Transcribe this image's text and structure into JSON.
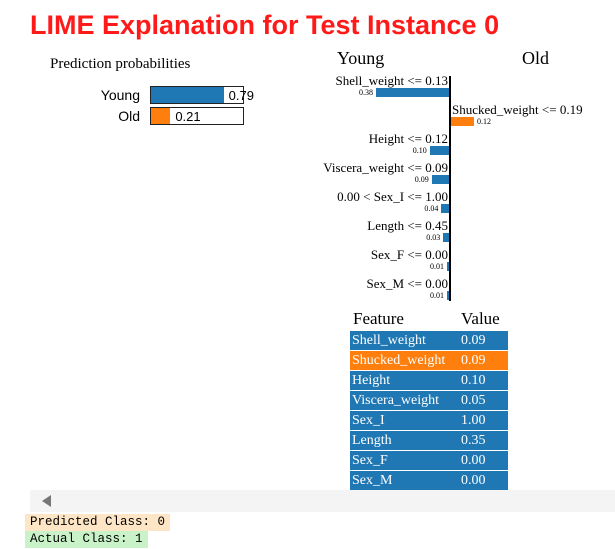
{
  "title": "LIME Explanation for Test Instance 0",
  "prediction": {
    "heading": "Prediction probabilities",
    "rows": [
      {
        "label": "Young",
        "value": "0.79",
        "fraction": 0.79,
        "color": "#1f77b4"
      },
      {
        "label": "Old",
        "value": "0.21",
        "fraction": 0.21,
        "color": "#ff7f0e"
      }
    ]
  },
  "classes": {
    "left": "Young",
    "right": "Old",
    "left_color": "#1f77b4",
    "right_color": "#ff7f0e"
  },
  "features": [
    {
      "label": "Shell_weight <= 0.13",
      "weight": "0.38",
      "value": 0.38,
      "side": "left"
    },
    {
      "label": "Shucked_weight <= 0.19",
      "weight": "0.12",
      "value": 0.12,
      "side": "right"
    },
    {
      "label": "Height <= 0.12",
      "weight": "0.10",
      "value": 0.1,
      "side": "left"
    },
    {
      "label": "Viscera_weight <= 0.09",
      "weight": "0.09",
      "value": 0.09,
      "side": "left"
    },
    {
      "label": "0.00 < Sex_I <= 1.00",
      "weight": "0.04",
      "value": 0.04,
      "side": "left"
    },
    {
      "label": "Length <= 0.45",
      "weight": "0.03",
      "value": 0.03,
      "side": "left"
    },
    {
      "label": "Sex_F <= 0.00",
      "weight": "0.01",
      "value": 0.01,
      "side": "left"
    },
    {
      "label": "Sex_M <= 0.00",
      "weight": "0.01",
      "value": 0.01,
      "side": "left"
    }
  ],
  "table": {
    "header": {
      "feature": "Feature",
      "value": "Value"
    },
    "rows": [
      {
        "feature": "Shell_weight",
        "value": "0.09",
        "color": "#1f77b4"
      },
      {
        "feature": "Shucked_weight",
        "value": "0.09",
        "color": "#ff7f0e"
      },
      {
        "feature": "Height",
        "value": "0.10",
        "color": "#1f77b4"
      },
      {
        "feature": "Viscera_weight",
        "value": "0.05",
        "color": "#1f77b4"
      },
      {
        "feature": "Sex_I",
        "value": "1.00",
        "color": "#1f77b4"
      },
      {
        "feature": "Length",
        "value": "0.35",
        "color": "#1f77b4"
      },
      {
        "feature": "Sex_F",
        "value": "0.00",
        "color": "#1f77b4"
      },
      {
        "feature": "Sex_M",
        "value": "0.00",
        "color": "#1f77b4"
      }
    ]
  },
  "output": {
    "predicted": "Predicted Class: 0",
    "actual": "Actual Class: 1",
    "predicted_bg": "#fde5c5",
    "actual_bg": "#c9f2c9"
  }
}
